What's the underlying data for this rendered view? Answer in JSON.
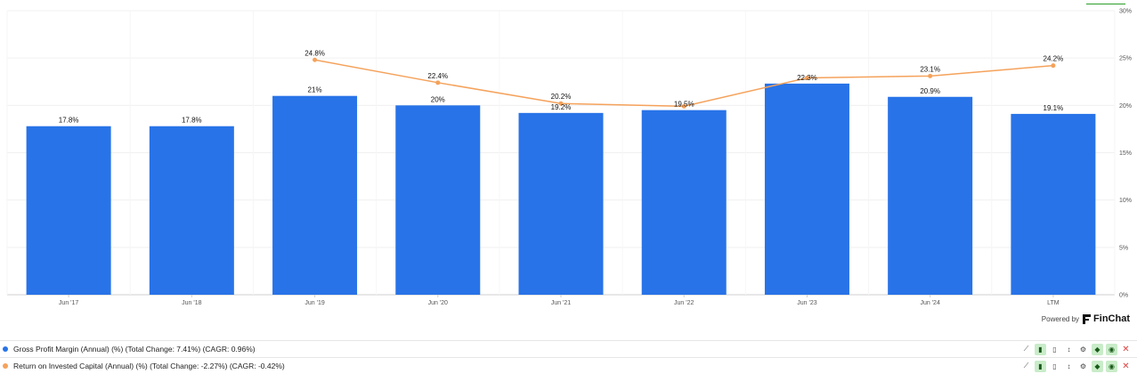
{
  "chart_data": {
    "type": "bar",
    "categories": [
      "Jun '17",
      "Jun '18",
      "Jun '19",
      "Jun '20",
      "Jun '21",
      "Jun '22",
      "Jun '23",
      "Jun '24",
      "LTM"
    ],
    "series": [
      {
        "name": "Gross Profit Margin (Annual) (%)",
        "type": "bar",
        "color": "#2873e8",
        "values": [
          17.8,
          17.8,
          21,
          20,
          19.2,
          19.5,
          22.3,
          20.9,
          19.1
        ],
        "labels": [
          "17.8%",
          "17.8%",
          "21%",
          "20%",
          "19.2%",
          "19.5%",
          "22.3%",
          "20.9%",
          "19.1%"
        ]
      },
      {
        "name": "Return on Invested Capital (Annual) (%)",
        "type": "line",
        "color": "#f5a25b",
        "values": [
          null,
          null,
          24.8,
          22.4,
          20.2,
          19.9,
          22.9,
          23.1,
          24.2
        ],
        "labels": [
          "",
          "",
          "24.8%",
          "22.4%",
          "20.2%",
          "",
          "",
          "23.1%",
          "24.2%"
        ]
      }
    ],
    "ylim": [
      0,
      30
    ],
    "yticks": [
      0,
      5,
      10,
      15,
      20,
      25,
      30
    ],
    "ytick_labels": [
      "0%",
      "5%",
      "10%",
      "15%",
      "20%",
      "25%",
      "30%"
    ],
    "yaxis_side": "right",
    "grid": true
  },
  "branding": {
    "powered_by": "Powered by",
    "brand": "FinChat"
  },
  "legend": [
    {
      "text": "Gross Profit Margin (Annual) (%) (Total Change: 7.41%) (CAGR: 0.96%)",
      "color": "#2873e8"
    },
    {
      "text": "Return on Invested Capital (Annual) (%) (Total Change: -2.27%) (CAGR: -0.42%)",
      "color": "#f5a25b"
    }
  ],
  "tools": [
    {
      "icon": "line-chart-icon",
      "glyph": "⟋",
      "active": false
    },
    {
      "icon": "bar-chart-icon",
      "glyph": "▮",
      "active": true
    },
    {
      "icon": "column-chart-icon",
      "glyph": "▯",
      "active": false
    },
    {
      "icon": "sort-icon",
      "glyph": "↕",
      "active": false
    },
    {
      "icon": "gear-icon",
      "glyph": "⚙",
      "active": false
    },
    {
      "icon": "tag-icon",
      "glyph": "◆",
      "active": true
    },
    {
      "icon": "eye-icon",
      "glyph": "◉",
      "active": true
    },
    {
      "icon": "close-icon",
      "glyph": "✕",
      "active": false
    }
  ]
}
